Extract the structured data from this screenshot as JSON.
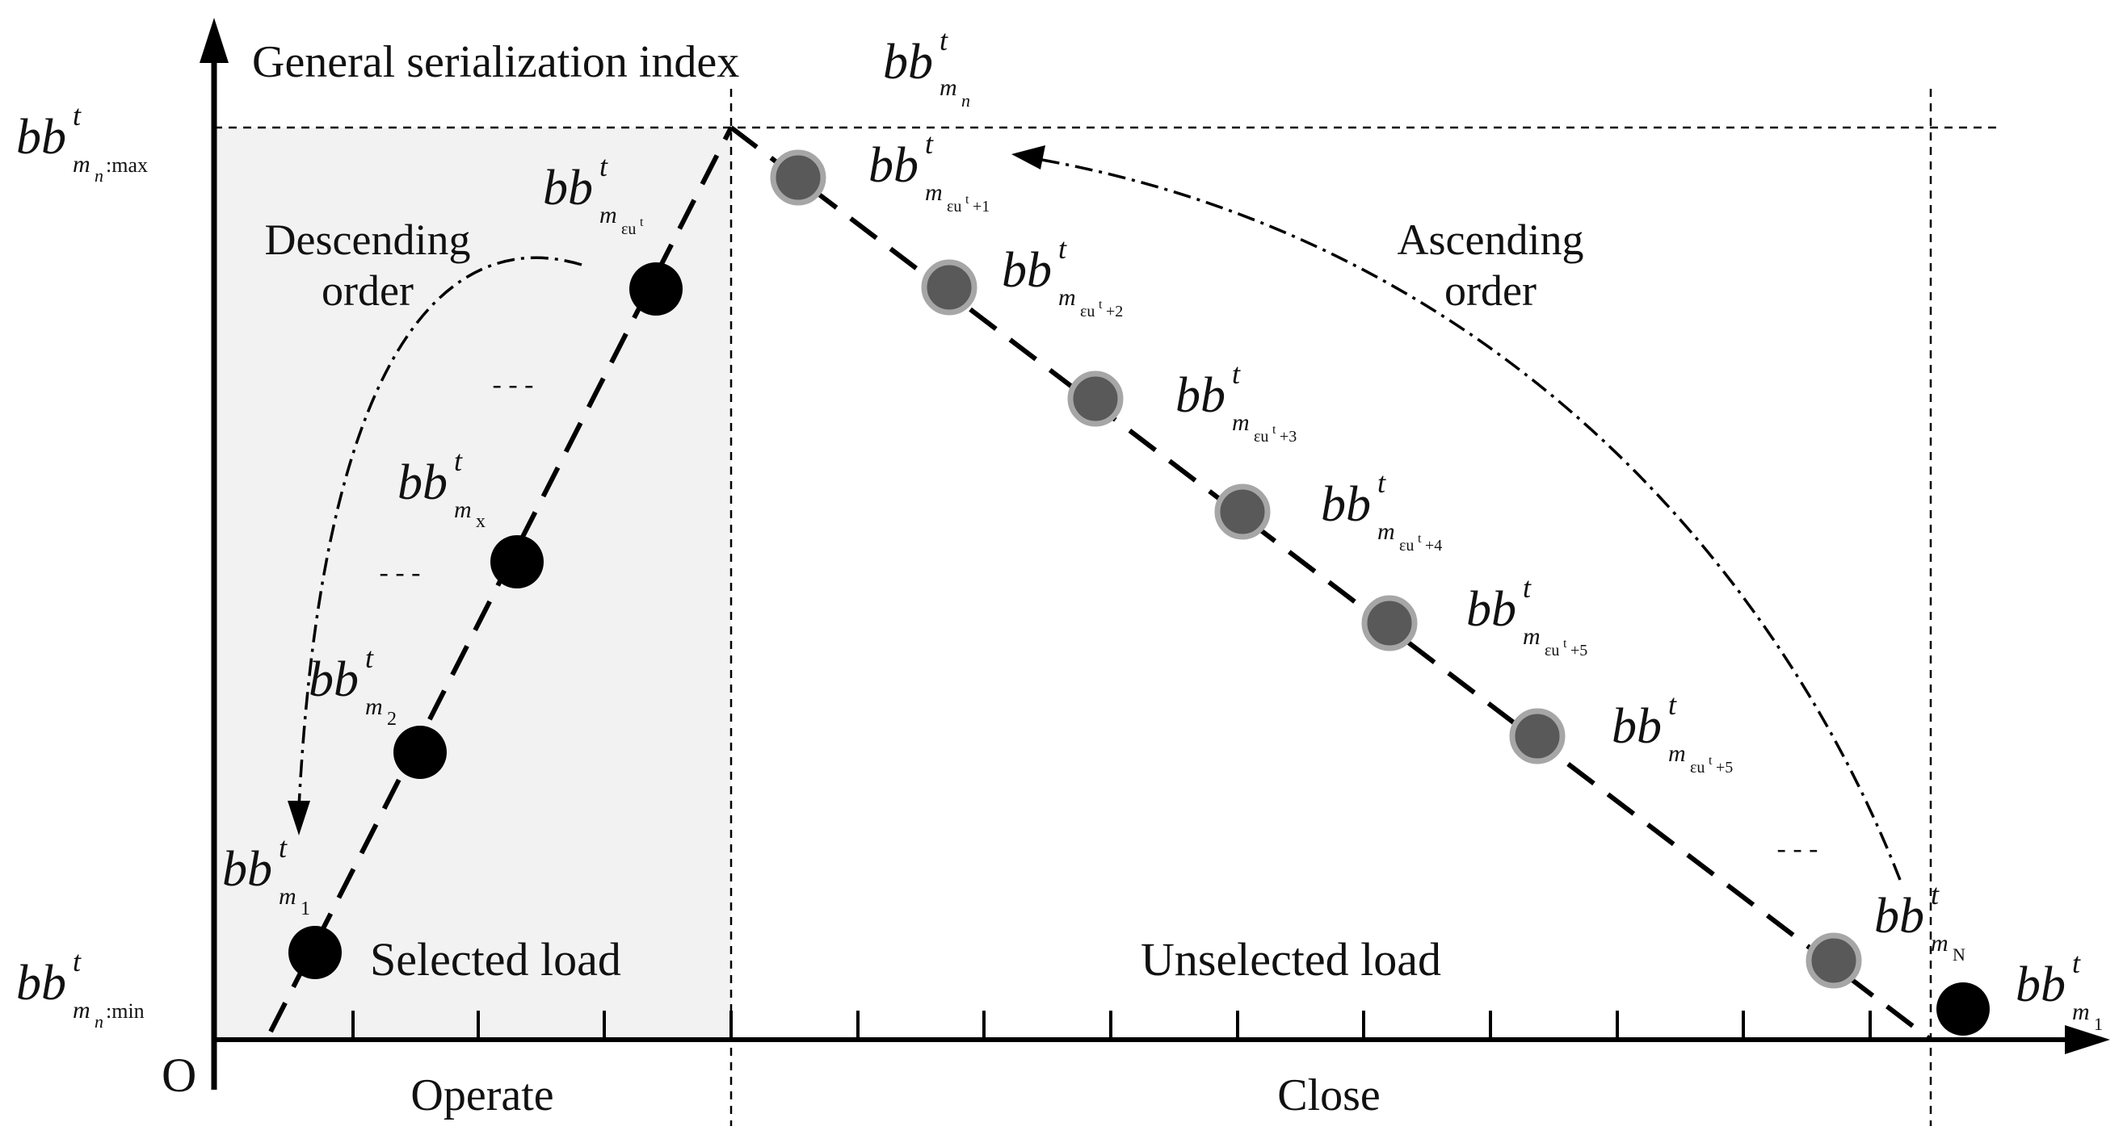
{
  "y_axis_title": "General serialization index",
  "y_axis_symbol": {
    "base": "bb",
    "sup": "t",
    "sub": "m",
    "subsub": "n"
  },
  "origin_label": "O",
  "y_max_label": {
    "base": "bb",
    "sup": "t",
    "sub": "m",
    "subsub": "n",
    "tail": ":max"
  },
  "y_min_label": {
    "base": "bb",
    "sup": "t",
    "sub": "m",
    "subsub": "n",
    "tail": ":min"
  },
  "region_labels": {
    "operate": "Operate",
    "close": "Close"
  },
  "load_labels": {
    "selected": "Selected load",
    "unselected": "Unselected load"
  },
  "order_labels": {
    "descending_1": "Descending",
    "descending_2": "order",
    "ascending_1": "Ascending",
    "ascending_2": "order"
  },
  "ellipsis": "- - -",
  "point_labels": {
    "selected": [
      {
        "base": "bb",
        "sup": "t",
        "sub": "m",
        "subsub": "1"
      },
      {
        "base": "bb",
        "sup": "t",
        "sub": "m",
        "subsub": "2"
      },
      {
        "base": "bb",
        "sup": "t",
        "sub": "m",
        "subsub": "x"
      },
      {
        "base": "bb",
        "sup": "t",
        "sub": "m",
        "subsub": "εu",
        "subsubsup": "t"
      }
    ],
    "unselected": [
      {
        "base": "bb",
        "sup": "t",
        "sub": "m",
        "subsub": "εu",
        "subsubsup": "t",
        "tail": "+1"
      },
      {
        "base": "bb",
        "sup": "t",
        "sub": "m",
        "subsub": "εu",
        "subsubsup": "t",
        "tail": "+2"
      },
      {
        "base": "bb",
        "sup": "t",
        "sub": "m",
        "subsub": "εu",
        "subsubsup": "t",
        "tail": "+3"
      },
      {
        "base": "bb",
        "sup": "t",
        "sub": "m",
        "subsub": "εu",
        "subsubsup": "t",
        "tail": "+4"
      },
      {
        "base": "bb",
        "sup": "t",
        "sub": "m",
        "subsub": "εu",
        "subsubsup": "t",
        "tail": "+5"
      },
      {
        "base": "bb",
        "sup": "t",
        "sub": "m",
        "subsub": "εu",
        "subsubsup": "t",
        "tail": "+5"
      },
      {
        "base": "bb",
        "sup": "t",
        "sub": "m",
        "subsub": "N"
      }
    ],
    "shifted": {
      "base": "bb",
      "sup": "t",
      "sub": "m",
      "subsub": "1"
    }
  },
  "colors": {
    "selected_fill": "#000000",
    "unselected_fill": "#595959",
    "unselected_ring": "#a6a6a6",
    "operate_region": "#f2f2f2",
    "line": "#000000"
  }
}
